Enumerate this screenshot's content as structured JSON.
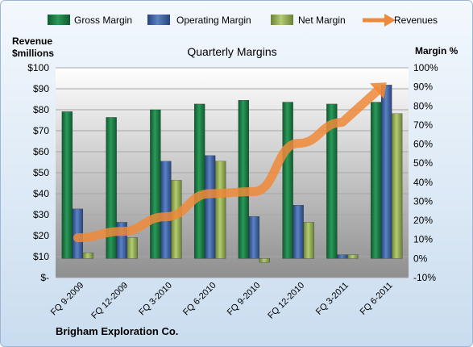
{
  "chart_data": {
    "type": "bar",
    "title": "Quarterly Margins",
    "categories": [
      "FQ 9-2009",
      "FQ 12-2009",
      "FQ 3-2010",
      "FQ 6-2010",
      "FQ 9-2010",
      "FQ 12-2010",
      "FQ 3-2011",
      "FQ 6-2011"
    ],
    "series": [
      {
        "name": "Gross Margin",
        "type": "bar",
        "axis": "right",
        "unit": "%",
        "color": "#1e7b45",
        "values": [
          77,
          74,
          78,
          81,
          83,
          82,
          81,
          82
        ]
      },
      {
        "name": "Operating Margin",
        "type": "bar",
        "axis": "right",
        "unit": "%",
        "color": "#3b5e9e",
        "values": [
          26,
          19,
          51,
          54,
          22,
          28,
          2,
          91
        ]
      },
      {
        "name": "Net Margin",
        "type": "bar",
        "axis": "right",
        "unit": "%",
        "color": "#93ad52",
        "values": [
          3,
          11,
          41,
          51,
          -2,
          19,
          2,
          76
        ]
      },
      {
        "name": "Revenues",
        "type": "line",
        "axis": "left",
        "unit": "$millions",
        "color": "#ef8a3a",
        "values": [
          19,
          22,
          29,
          40,
          41,
          64,
          74,
          93
        ]
      }
    ],
    "left_axis": {
      "label_line1": "Revenue",
      "label_line2": "$millions",
      "min": 0,
      "max": 100,
      "step": 10,
      "ticks": [
        "$-",
        "$10",
        "$20",
        "$30",
        "$40",
        "$50",
        "$60",
        "$70",
        "$80",
        "$90",
        "$100"
      ]
    },
    "right_axis": {
      "label": "Margin %",
      "min": -10,
      "max": 100,
      "step": 10,
      "ticks": [
        "-10%",
        "0%",
        "10%",
        "20%",
        "30%",
        "40%",
        "50%",
        "60%",
        "70%",
        "80%",
        "90%",
        "100%"
      ]
    },
    "legend": {
      "placement": "top",
      "items": [
        "Gross Margin",
        "Operating Margin",
        "Net Margin",
        "Revenues"
      ]
    },
    "grid": true,
    "source": "Brigham Exploration Co."
  }
}
